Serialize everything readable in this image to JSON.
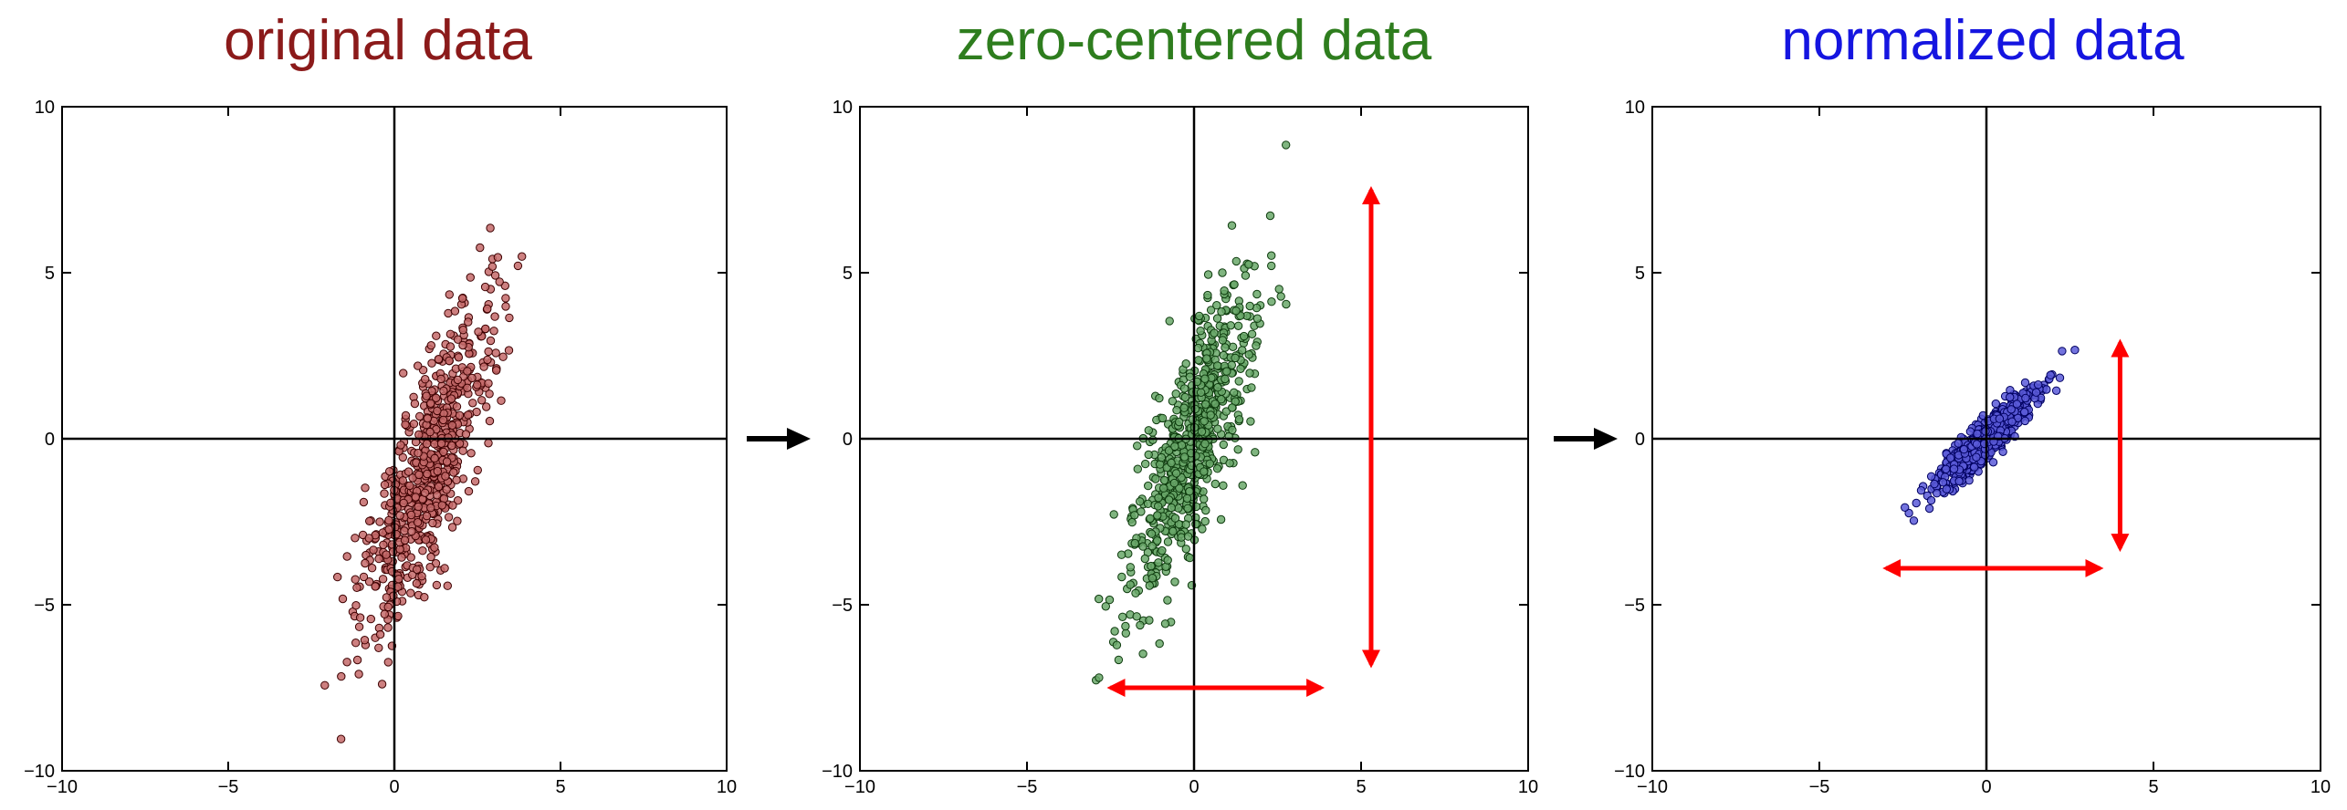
{
  "chart_data": [
    {
      "type": "scatter",
      "title": "original data",
      "title_color": "#8b1a1a",
      "point_fill": "#c46a6a",
      "point_stroke": "#3d0000",
      "xlim": [
        -10,
        10
      ],
      "ylim": [
        -10,
        10
      ],
      "x_ticks": [
        "−10",
        "−5",
        "0",
        "5",
        "10"
      ],
      "y_ticks": [
        "10",
        "5",
        "0",
        "−5",
        "−10"
      ],
      "grid": false,
      "center": [
        1.0,
        -1.0
      ],
      "spread": {
        "along_diagonal": 2.6,
        "across_diagonal": 0.55
      },
      "slope": 3.0,
      "n_points": 700,
      "arrows": []
    },
    {
      "type": "scatter",
      "title": "zero-centered data",
      "title_color": "#2e7d1e",
      "point_fill": "#6aa86a",
      "point_stroke": "#0d3a0d",
      "xlim": [
        -10,
        10
      ],
      "ylim": [
        -10,
        10
      ],
      "x_ticks": [
        "−10",
        "−5",
        "0",
        "5",
        "10"
      ],
      "y_ticks": [
        "10",
        "5",
        "0",
        "−5",
        "−10"
      ],
      "grid": false,
      "center": [
        0.0,
        0.0
      ],
      "spread": {
        "along_diagonal": 2.6,
        "across_diagonal": 0.55
      },
      "slope": 3.0,
      "n_points": 700,
      "arrows": [
        {
          "x1": 5.3,
          "y1": 7.5,
          "x2": 5.3,
          "y2": -6.8,
          "color": "#ff0000"
        },
        {
          "x1": -2.5,
          "y1": -7.5,
          "x2": 3.8,
          "y2": -7.5,
          "color": "#ff0000"
        }
      ]
    },
    {
      "type": "scatter",
      "title": "normalized data",
      "title_color": "#1515e0",
      "point_fill": "#5a5ad8",
      "point_stroke": "#000060",
      "xlim": [
        -10,
        10
      ],
      "ylim": [
        -10,
        10
      ],
      "x_ticks": [
        "−10",
        "−5",
        "0",
        "5",
        "10"
      ],
      "y_ticks": [
        "10",
        "5",
        "0",
        "−5",
        "−10"
      ],
      "grid": false,
      "center": [
        0.0,
        0.0
      ],
      "spread": {
        "along_diagonal": 1.05,
        "across_diagonal": 0.22
      },
      "slope": 1.0,
      "n_points": 700,
      "arrows": [
        {
          "x1": 4.0,
          "y1": 2.9,
          "x2": 4.0,
          "y2": -3.3,
          "color": "#ff0000"
        },
        {
          "x1": -3.0,
          "y1": -3.9,
          "x2": 3.4,
          "y2": -3.9,
          "color": "#ff0000"
        }
      ]
    }
  ],
  "between_panel_arrows": {
    "color": "#000000",
    "count": 2
  }
}
